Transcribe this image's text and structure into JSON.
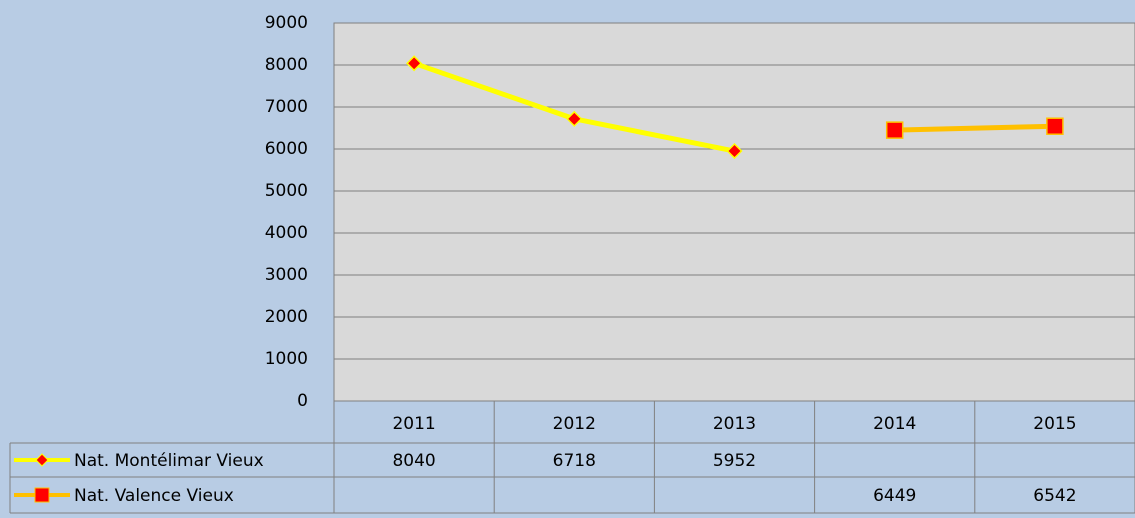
{
  "chart_data": {
    "type": "line",
    "categories": [
      "2011",
      "2012",
      "2013",
      "2014",
      "2015"
    ],
    "series": [
      {
        "name": "Nat.  Montélimar Vieux",
        "color": "#ffff00",
        "marker": "diamond",
        "marker_color": "#ff0000",
        "values": [
          8040,
          6718,
          5952,
          null,
          null
        ]
      },
      {
        "name": "Nat.  Valence Vieux",
        "color": "#ffc000",
        "marker": "square",
        "marker_color": "#ff0000",
        "values": [
          null,
          null,
          null,
          6449,
          6542
        ]
      }
    ],
    "ylim": [
      0,
      9000
    ],
    "yticks": [
      0,
      1000,
      2000,
      3000,
      4000,
      5000,
      6000,
      7000,
      8000,
      9000
    ],
    "grid": true,
    "data_table": true
  }
}
